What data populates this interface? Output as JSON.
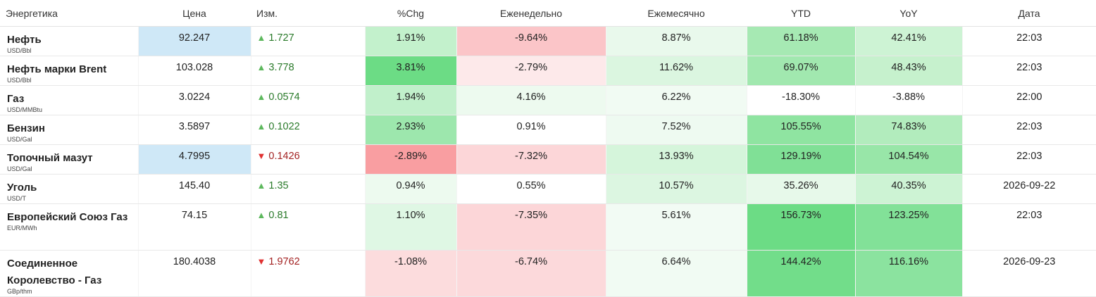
{
  "headers": [
    "Энергетика",
    "Цена",
    "Изм.",
    "%Chg",
    "Еженедельно",
    "Ежемесячно",
    "YTD",
    "YoY",
    "Дата"
  ],
  "rows": [
    {
      "name": "Нефть",
      "unit": "USD/Bbl",
      "price": "92.247",
      "change": "1.727",
      "dir": "up",
      "pct": "1.91%",
      "weekly": "-9.64%",
      "monthly": "8.87%",
      "ytd": "61.18%",
      "yoy": "42.41%",
      "date": "22:03",
      "colors": {
        "price": "#cfe8f7",
        "change": "#ffffff",
        "pct": "#c3f1cc",
        "weekly": "#fbc5c8",
        "monthly": "#e9f9ec",
        "ytd": "#a6e9b3",
        "yoy": "#cdf3d4",
        "date": "#ffffff"
      }
    },
    {
      "name": "Нефть марки Brent",
      "unit": "USD/Bbl",
      "price": "103.028",
      "change": "3.778",
      "dir": "up",
      "pct": "3.81%",
      "weekly": "-2.79%",
      "monthly": "11.62%",
      "ytd": "69.07%",
      "yoy": "48.43%",
      "date": "22:03",
      "colors": {
        "price": "#ffffff",
        "change": "#ffffff",
        "pct": "#6cdc85",
        "weekly": "#fde9ea",
        "monthly": "#dbf6e0",
        "ytd": "#a1e8af",
        "yoy": "#c6f1cd",
        "date": "#ffffff"
      }
    },
    {
      "name": "Газ",
      "unit": "USD/MMBtu",
      "price": "3.0224",
      "change": "0.0574",
      "dir": "up",
      "pct": "1.94%",
      "weekly": "4.16%",
      "monthly": "6.22%",
      "ytd": "-18.30%",
      "yoy": "-3.88%",
      "date": "22:00",
      "colors": {
        "price": "#ffffff",
        "change": "#ffffff",
        "pct": "#c1f0cb",
        "weekly": "#edfaef",
        "monthly": "#f1fbf3",
        "ytd": "#ffffff",
        "yoy": "#ffffff",
        "date": "#ffffff"
      }
    },
    {
      "name": "Бензин",
      "unit": "USD/Gal",
      "price": "3.5897",
      "change": "0.1022",
      "dir": "up",
      "pct": "2.93%",
      "weekly": "0.91%",
      "monthly": "7.52%",
      "ytd": "105.55%",
      "yoy": "74.83%",
      "date": "22:03",
      "colors": {
        "price": "#ffffff",
        "change": "#ffffff",
        "pct": "#9de7ad",
        "weekly": "#ffffff",
        "monthly": "#eefaf1",
        "ytd": "#8fe4a1",
        "yoy": "#b2ecbd",
        "date": "#ffffff"
      }
    },
    {
      "name": "Топочный мазут",
      "unit": "USD/Gal",
      "price": "4.7995",
      "change": "0.1426",
      "dir": "down",
      "pct": "-2.89%",
      "weekly": "-7.32%",
      "monthly": "13.93%",
      "ytd": "129.19%",
      "yoy": "104.54%",
      "date": "22:03",
      "colors": {
        "price": "#cfe8f7",
        "change": "#ffffff",
        "pct": "#f99ea1",
        "weekly": "#fcd6d8",
        "monthly": "#d5f5db",
        "ytd": "#80e096",
        "yoy": "#98e6a8",
        "date": "#ffffff"
      }
    },
    {
      "name": "Уголь",
      "unit": "USD/T",
      "price": "145.40",
      "change": "1.35",
      "dir": "up",
      "pct": "0.94%",
      "weekly": "0.55%",
      "monthly": "10.57%",
      "ytd": "35.26%",
      "yoy": "40.35%",
      "date": "2026-09-22",
      "colors": {
        "price": "#ffffff",
        "change": "#ffffff",
        "pct": "#edfaef",
        "weekly": "#ffffff",
        "monthly": "#dcf6e1",
        "ytd": "#e7f9ea",
        "yoy": "#cdf3d4",
        "date": "#ffffff"
      }
    },
    {
      "name": "Европейский Союз Газ",
      "unit": "EUR/MWh",
      "price": "74.15",
      "change": "0.81",
      "dir": "up",
      "pct": "1.10%",
      "weekly": "-7.35%",
      "monthly": "5.61%",
      "ytd": "156.73%",
      "yoy": "123.25%",
      "date": "22:03",
      "colors": {
        "price": "#ffffff",
        "change": "#ffffff",
        "pct": "#dff7e4",
        "weekly": "#fcd6d8",
        "monthly": "#f2fbf4",
        "ytd": "#6cdc85",
        "yoy": "#82e198",
        "date": "#ffffff"
      }
    },
    {
      "name": "Соединенное Королевство - Газ",
      "unit": "GBp/thm",
      "price": "180.4038",
      "change": "1.9762",
      "dir": "down",
      "pct": "-1.08%",
      "weekly": "-6.74%",
      "monthly": "6.64%",
      "ytd": "144.42%",
      "yoy": "116.16%",
      "date": "2026-09-23",
      "colors": {
        "price": "#ffffff",
        "change": "#ffffff",
        "pct": "#fcdcdd",
        "weekly": "#fcd9db",
        "monthly": "#f1fbf3",
        "ytd": "#72dd8a",
        "yoy": "#8be39f",
        "date": "#ffffff"
      }
    }
  ]
}
